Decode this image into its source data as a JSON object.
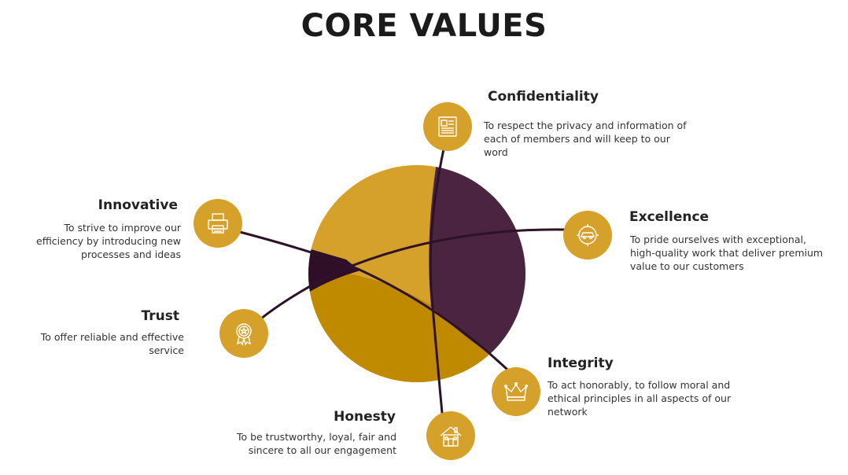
{
  "title": "CORE VALUES",
  "colors": {
    "gold": "#d6a12b",
    "dark_gold": "#bf8a00",
    "plum": "#4a2440",
    "line": "#2e1228",
    "icon_stroke": "#ffffff"
  },
  "values": [
    {
      "name": "Confidentiality",
      "description": "To respect the privacy and information of each of members and will keep to our word",
      "icon": "newspaper-icon"
    },
    {
      "name": "Innovative",
      "description": "To strive to improve our efficiency by introducing new processes and ideas",
      "icon": "printer-icon"
    },
    {
      "name": "Excellence",
      "description": "To  pride ourselves with exceptional, high-quality work that deliver premium value to our customers",
      "icon": "car-gear-icon"
    },
    {
      "name": "Trust",
      "description": "To offer reliable and effective service",
      "icon": "award-badge-icon"
    },
    {
      "name": "Integrity",
      "description": "To act honorably, to follow moral and ethical principles in all aspects of our network",
      "icon": "crown-icon"
    },
    {
      "name": "Honesty",
      "description": "To be trustworthy, loyal, fair and sincere to all our engagement",
      "icon": "house-icon"
    }
  ]
}
